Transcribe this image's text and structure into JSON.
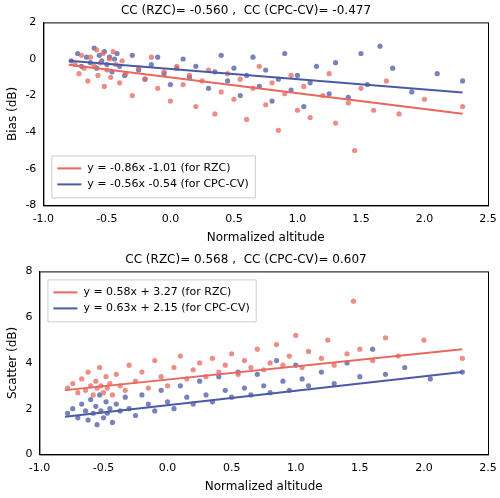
{
  "chart_data": [
    {
      "type": "scatter",
      "title": "CC (RZC)= -0.560 ,  CC (CPC-CV)= -0.477",
      "x_label": "Normalized altitude",
      "y_label": "Bias (dB)",
      "xlim": [
        -1,
        2.5
      ],
      "xticks": [
        {
          "value": -1,
          "label": "-1.0"
        },
        {
          "value": -0.5,
          "label": "-0.5"
        },
        {
          "value": 0,
          "label": "0.0"
        },
        {
          "value": 0.5,
          "label": "0.5"
        },
        {
          "value": 1,
          "label": "1.0"
        },
        {
          "value": 1.5,
          "label": "1.5"
        },
        {
          "value": 2,
          "label": "2.0"
        },
        {
          "value": 2.5,
          "label": "2.5"
        }
      ],
      "ylim": [
        -8,
        2
      ],
      "yticks": [
        -8,
        -6,
        -4,
        -2,
        0,
        2
      ],
      "grid": false,
      "legend": "lower left",
      "series": [
        {
          "type": "scatter",
          "color": "#e8675f",
          "x": [
            -0.75,
            -0.72,
            -0.7,
            -0.68,
            -0.65,
            -0.63,
            -0.6,
            -0.58,
            -0.57,
            -0.55,
            -0.53,
            -0.52,
            -0.5,
            -0.48,
            -0.47,
            -0.45,
            -0.43,
            -0.4,
            -0.38,
            -0.35,
            -0.3,
            -0.25,
            -0.2,
            -0.15,
            -0.1,
            -0.05,
            0.0,
            0.05,
            0.1,
            0.15,
            0.2,
            0.25,
            0.3,
            0.35,
            0.4,
            0.45,
            0.5,
            0.55,
            0.6,
            0.65,
            0.7,
            0.75,
            0.8,
            0.85,
            0.9,
            0.95,
            1.0,
            1.05,
            1.1,
            1.2,
            1.25,
            1.3,
            1.4,
            1.45,
            1.5,
            1.6,
            1.7,
            1.8,
            2.0,
            2.3
          ],
          "values": [
            -0.3,
            -0.8,
            0.2,
            -0.5,
            -1.2,
            0.1,
            -0.4,
            0.5,
            -0.9,
            -0.2,
            0.3,
            -1.5,
            -0.6,
            0.0,
            -1.0,
            0.4,
            -0.3,
            -1.3,
            -0.1,
            -0.8,
            -2.0,
            -0.5,
            -1.1,
            0.1,
            -1.6,
            -0.7,
            -2.3,
            -0.4,
            -1.4,
            -0.9,
            -2.6,
            -1.2,
            -0.6,
            -3.0,
            -1.8,
            -0.8,
            -2.2,
            -1.1,
            -3.3,
            -1.6,
            -0.4,
            -2.5,
            -1.3,
            -3.9,
            -1.9,
            -0.9,
            -2.8,
            -1.5,
            -3.2,
            -2.0,
            -0.8,
            -3.5,
            -2.4,
            -5.0,
            -1.6,
            -2.8,
            -1.2,
            -3.0,
            -2.2,
            -2.6
          ]
        },
        {
          "type": "scatter",
          "color": "#4b5aa6",
          "x": [
            -0.78,
            -0.73,
            -0.7,
            -0.66,
            -0.63,
            -0.6,
            -0.58,
            -0.56,
            -0.54,
            -0.52,
            -0.5,
            -0.48,
            -0.46,
            -0.44,
            -0.42,
            -0.4,
            -0.36,
            -0.3,
            -0.25,
            -0.2,
            -0.15,
            -0.1,
            -0.05,
            0.0,
            0.05,
            0.1,
            0.15,
            0.2,
            0.3,
            0.35,
            0.4,
            0.45,
            0.5,
            0.55,
            0.6,
            0.65,
            0.7,
            0.75,
            0.8,
            0.85,
            0.9,
            0.95,
            1.0,
            1.05,
            1.1,
            1.15,
            1.25,
            1.3,
            1.4,
            1.5,
            1.55,
            1.65,
            1.75,
            1.9,
            2.1,
            2.3
          ],
          "values": [
            -0.1,
            0.3,
            -0.4,
            0.1,
            -0.2,
            0.6,
            -0.5,
            0.2,
            -0.1,
            0.4,
            -0.3,
            0.1,
            -0.7,
            0.0,
            0.3,
            -0.4,
            -0.9,
            0.2,
            -0.6,
            -1.1,
            -0.3,
            0.1,
            -0.8,
            -1.4,
            -0.5,
            0.0,
            -1.0,
            -0.4,
            -1.6,
            -0.7,
            0.2,
            -1.2,
            -0.5,
            -2.0,
            -0.9,
            0.1,
            -1.5,
            -0.6,
            -2.3,
            -1.1,
            0.3,
            -1.7,
            -0.9,
            -2.6,
            -1.3,
            -0.4,
            -1.9,
            -0.2,
            -2.1,
            0.3,
            -1.4,
            0.7,
            -0.5,
            -1.8,
            -0.8,
            -1.2
          ]
        },
        {
          "type": "line",
          "name": "y = -0.86x -1.01 (for RZC)",
          "color": "#e8675f",
          "x": [
            -0.8,
            2.3
          ],
          "values": [
            -0.32,
            -2.99
          ]
        },
        {
          "type": "line",
          "name": "y = -0.56x -0.54 (for CPC-CV)",
          "color": "#4b5aa6",
          "x": [
            -0.8,
            2.3
          ],
          "values": [
            -0.09,
            -1.83
          ]
        }
      ]
    },
    {
      "type": "scatter",
      "title": "CC (RZC)= 0.568 ,  CC (CPC-CV)= 0.607",
      "x_label": "Normalized altitude",
      "y_label": "Scatter (dB)",
      "xlim": [
        -1,
        2.5
      ],
      "xticks": [
        {
          "value": -1,
          "label": "-1.0"
        },
        {
          "value": -0.5,
          "label": "-0.5"
        },
        {
          "value": 0,
          "label": "0.0"
        },
        {
          "value": 0.5,
          "label": "0.5"
        },
        {
          "value": 1,
          "label": "1.0"
        },
        {
          "value": 1.5,
          "label": "1.5"
        },
        {
          "value": 2,
          "label": "2.0"
        },
        {
          "value": 2.5,
          "label": "2.5"
        }
      ],
      "ylim": [
        0,
        8
      ],
      "yticks": [
        0,
        2,
        4,
        6,
        8
      ],
      "grid": false,
      "legend": "upper left",
      "series": [
        {
          "type": "scatter",
          "color": "#e8675f",
          "x": [
            -0.78,
            -0.74,
            -0.7,
            -0.67,
            -0.64,
            -0.62,
            -0.6,
            -0.58,
            -0.56,
            -0.55,
            -0.53,
            -0.52,
            -0.5,
            -0.48,
            -0.47,
            -0.45,
            -0.43,
            -0.4,
            -0.37,
            -0.33,
            -0.3,
            -0.25,
            -0.2,
            -0.15,
            -0.1,
            -0.05,
            0.0,
            0.05,
            0.1,
            0.15,
            0.2,
            0.25,
            0.3,
            0.35,
            0.4,
            0.45,
            0.5,
            0.55,
            0.6,
            0.65,
            0.7,
            0.75,
            0.8,
            0.85,
            0.9,
            0.95,
            1.0,
            1.05,
            1.1,
            1.2,
            1.25,
            1.3,
            1.4,
            1.45,
            1.5,
            1.6,
            1.7,
            1.8,
            2.0,
            2.3
          ],
          "values": [
            2.9,
            3.1,
            2.7,
            3.3,
            2.8,
            3.6,
            3.0,
            2.6,
            3.2,
            2.9,
            3.8,
            3.0,
            2.7,
            3.4,
            2.9,
            3.1,
            2.6,
            3.5,
            3.0,
            2.8,
            3.9,
            3.2,
            3.6,
            2.9,
            4.1,
            3.4,
            3.0,
            3.8,
            4.3,
            3.3,
            3.7,
            4.0,
            3.4,
            4.2,
            3.6,
            3.9,
            4.4,
            3.5,
            4.1,
            3.8,
            4.6,
            3.7,
            4.0,
            4.8,
            3.9,
            4.3,
            5.2,
            3.8,
            4.5,
            4.2,
            5.0,
            3.9,
            4.4,
            6.7,
            4.6,
            4.1,
            5.1,
            4.3,
            5.0,
            4.2
          ]
        },
        {
          "type": "scatter",
          "color": "#4b5aa6",
          "x": [
            -0.78,
            -0.74,
            -0.7,
            -0.67,
            -0.64,
            -0.62,
            -0.6,
            -0.58,
            -0.56,
            -0.55,
            -0.53,
            -0.52,
            -0.5,
            -0.48,
            -0.47,
            -0.45,
            -0.43,
            -0.4,
            -0.37,
            -0.33,
            -0.3,
            -0.25,
            -0.2,
            -0.15,
            -0.1,
            -0.05,
            0.0,
            0.05,
            0.1,
            0.15,
            0.2,
            0.25,
            0.3,
            0.35,
            0.4,
            0.45,
            0.5,
            0.55,
            0.6,
            0.65,
            0.7,
            0.75,
            0.8,
            0.85,
            0.9,
            0.95,
            1.0,
            1.05,
            1.1,
            1.2,
            1.3,
            1.4,
            1.5,
            1.6,
            1.7,
            1.85,
            2.05,
            2.3
          ],
          "values": [
            1.8,
            2.0,
            1.6,
            2.2,
            1.9,
            1.5,
            2.4,
            1.8,
            2.1,
            1.3,
            2.6,
            1.9,
            1.6,
            2.3,
            1.8,
            2.0,
            1.4,
            2.2,
            1.9,
            2.5,
            2.0,
            1.7,
            2.6,
            2.2,
            1.9,
            2.8,
            2.3,
            2.0,
            3.0,
            2.5,
            2.2,
            3.2,
            2.6,
            2.3,
            3.4,
            2.8,
            2.5,
            3.6,
            2.9,
            2.6,
            3.5,
            3.0,
            2.7,
            4.1,
            3.2,
            2.8,
            3.9,
            3.3,
            3.0,
            3.6,
            3.1,
            4.0,
            3.4,
            4.6,
            3.5,
            3.8,
            3.3,
            3.6
          ]
        },
        {
          "type": "line",
          "name": "y = 0.58x + 3.27 (for RZC)",
          "color": "#e8675f",
          "x": [
            -0.8,
            2.3
          ],
          "values": [
            2.81,
            4.6
          ]
        },
        {
          "type": "line",
          "name": "y = 0.63x + 2.15 (for CPC-CV)",
          "color": "#4b5aa6",
          "x": [
            -0.8,
            2.3
          ],
          "values": [
            1.65,
            3.6
          ]
        }
      ]
    }
  ]
}
